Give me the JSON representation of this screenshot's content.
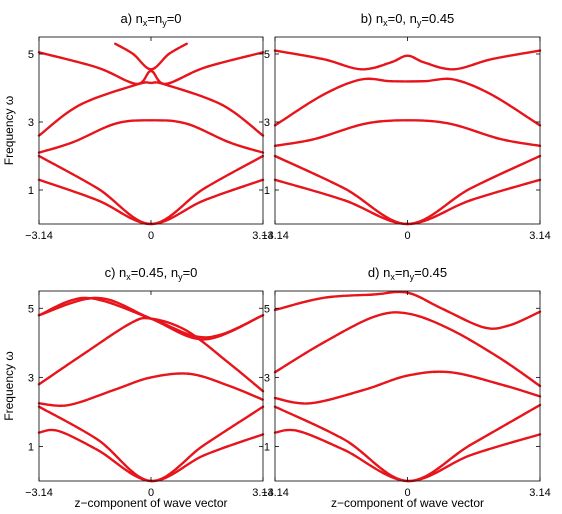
{
  "figure": {
    "series_color": "#e8141b",
    "xlabel": "z−component of wave vector",
    "ylabel": "Frequency ω"
  },
  "chart_data": [
    {
      "type": "line",
      "title": "a) n_x=n_y=0",
      "title_parts": [
        "a) n",
        "x",
        "=n",
        "y",
        "=0"
      ],
      "xlabel": "",
      "ylabel": "Frequency ω",
      "xlim": [
        -3.14,
        3.14
      ],
      "ylim": [
        0,
        5.5
      ],
      "xticks": [
        "-3.14",
        "0",
        "3.14"
      ],
      "yticks": [
        "1",
        "3",
        "5"
      ],
      "grid": false,
      "series": [
        {
          "x": [
            -3.14,
            -1.5,
            0,
            1.5,
            3.14
          ],
          "y": [
            1.3,
            0.7,
            0,
            0.7,
            1.3
          ]
        },
        {
          "x": [
            -3.14,
            -1.5,
            0,
            1.5,
            3.14
          ],
          "y": [
            2.0,
            1.05,
            0,
            1.05,
            2.0
          ]
        },
        {
          "x": [
            -3.14,
            -2.2,
            -1,
            0,
            1,
            2.2,
            3.14
          ],
          "y": [
            2.1,
            2.4,
            2.95,
            3.05,
            2.95,
            2.4,
            2.1
          ]
        },
        {
          "x": [
            -3.14,
            -2,
            -0.4,
            0,
            0.4,
            2,
            3.14
          ],
          "y": [
            2.6,
            3.5,
            4.1,
            4.15,
            4.1,
            3.5,
            2.6
          ]
        },
        {
          "x": [
            -3.14,
            -1.5,
            -0.4,
            0,
            0.4,
            1.5,
            3.14
          ],
          "y": [
            5.05,
            4.6,
            4.12,
            4.5,
            4.12,
            4.6,
            5.05
          ]
        },
        {
          "x": [
            -1.0,
            -0.5,
            0,
            0.5,
            1.0
          ],
          "y": [
            5.3,
            5.0,
            4.55,
            5.0,
            5.3
          ]
        }
      ]
    },
    {
      "type": "line",
      "title": "b) n_x=0, n_y=0.45",
      "title_parts": [
        "b) n",
        "x",
        "=0, n",
        "y",
        "=0.45"
      ],
      "xlabel": "",
      "ylabel": "",
      "xlim": [
        -3.14,
        3.14
      ],
      "ylim": [
        0,
        5.5
      ],
      "xticks": [
        "-3.14",
        "0",
        "3.14"
      ],
      "yticks": [
        "1",
        "3",
        "5"
      ],
      "grid": false,
      "series": [
        {
          "x": [
            -3.14,
            -1.5,
            0,
            1.5,
            3.14
          ],
          "y": [
            1.3,
            0.7,
            0,
            0.7,
            1.3
          ]
        },
        {
          "x": [
            -3.14,
            -1.5,
            0,
            1.5,
            3.14
          ],
          "y": [
            2.0,
            1.05,
            0,
            1.05,
            2.0
          ]
        },
        {
          "x": [
            -3.14,
            -2.2,
            -1,
            0,
            1,
            2.2,
            3.14
          ],
          "y": [
            2.3,
            2.5,
            2.95,
            3.05,
            2.95,
            2.5,
            2.3
          ]
        },
        {
          "x": [
            -3.14,
            -2,
            -1.1,
            -0.4,
            0.4,
            1.1,
            2,
            3.14
          ],
          "y": [
            2.9,
            3.8,
            4.25,
            4.2,
            4.2,
            4.25,
            3.8,
            2.9
          ]
        },
        {
          "x": [
            -3.14,
            -2,
            -1.1,
            -0.4,
            0,
            0.4,
            1.1,
            2,
            3.14
          ],
          "y": [
            5.1,
            4.85,
            4.55,
            4.75,
            4.95,
            4.75,
            4.55,
            4.85,
            5.1
          ]
        }
      ]
    },
    {
      "type": "line",
      "title": "c) n_x=0.45, n_y=0",
      "title_parts": [
        "c) n",
        "x",
        "=0.45, n",
        "y",
        "=0"
      ],
      "xlabel": "",
      "ylabel": "Frequency ω",
      "xlim": [
        -3.14,
        3.14
      ],
      "ylim": [
        0,
        5.5
      ],
      "xticks": [
        "-3.14",
        "0",
        "3.14"
      ],
      "yticks": [
        "1",
        "3",
        "5"
      ],
      "grid": false,
      "series": [
        {
          "x": [
            -3.14,
            -2.6,
            -1.5,
            0,
            1.5,
            3.14
          ],
          "y": [
            1.4,
            1.45,
            0.9,
            0,
            0.75,
            1.35
          ]
        },
        {
          "x": [
            -3.14,
            -1.5,
            0,
            1.5,
            3.14
          ],
          "y": [
            2.15,
            1.2,
            0,
            1.05,
            2.15
          ]
        },
        {
          "x": [
            -3.14,
            -2.3,
            -1,
            0,
            1.1,
            2.2,
            3.14
          ],
          "y": [
            2.25,
            2.2,
            2.65,
            3.0,
            3.1,
            2.75,
            2.35
          ]
        },
        {
          "x": [
            -3.14,
            -2,
            -0.6,
            0,
            1,
            2.2,
            3.14
          ],
          "y": [
            2.8,
            3.6,
            4.55,
            4.7,
            4.35,
            3.4,
            2.6
          ]
        },
        {
          "x": [
            -3.14,
            -1.8,
            0,
            1.2,
            2,
            3.14
          ],
          "y": [
            4.8,
            5.3,
            4.7,
            4.2,
            4.25,
            4.8
          ]
        },
        {
          "x": [
            -3.14,
            -1.5,
            0,
            1.5,
            3.14
          ],
          "y": [
            4.8,
            5.3,
            4.7,
            4.1,
            4.8
          ]
        }
      ]
    },
    {
      "type": "line",
      "title": "d) n_x=n_y=0.45",
      "title_parts": [
        "d) n",
        "x",
        "=n",
        "y",
        "=0.45"
      ],
      "xlabel": "",
      "ylabel": "",
      "xlim": [
        -3.14,
        3.14
      ],
      "ylim": [
        0,
        5.5
      ],
      "xticks": [
        "-3.14",
        "0",
        "3.14"
      ],
      "yticks": [
        "1",
        "3",
        "5"
      ],
      "grid": false,
      "series": [
        {
          "x": [
            -3.14,
            -2.6,
            -1.5,
            0,
            1.5,
            3.14
          ],
          "y": [
            1.4,
            1.45,
            0.9,
            0,
            0.75,
            1.35
          ]
        },
        {
          "x": [
            -3.14,
            -1.5,
            0,
            1.5,
            3.14
          ],
          "y": [
            2.15,
            1.2,
            0,
            1.05,
            2.2
          ]
        },
        {
          "x": [
            -3.14,
            -2.3,
            -1,
            0,
            1,
            2.2,
            3.14
          ],
          "y": [
            2.4,
            2.25,
            2.65,
            3.05,
            3.15,
            2.8,
            2.45
          ]
        },
        {
          "x": [
            -3.14,
            -2,
            -0.8,
            0,
            1,
            2.2,
            3.14
          ],
          "y": [
            3.15,
            4.0,
            4.75,
            4.85,
            4.4,
            3.55,
            2.75
          ]
        },
        {
          "x": [
            -3.14,
            -2,
            -0.8,
            0,
            0.8,
            1.8,
            2.4,
            3.14
          ],
          "y": [
            4.95,
            5.3,
            5.4,
            5.45,
            5.0,
            4.45,
            4.5,
            4.9
          ]
        }
      ]
    }
  ]
}
